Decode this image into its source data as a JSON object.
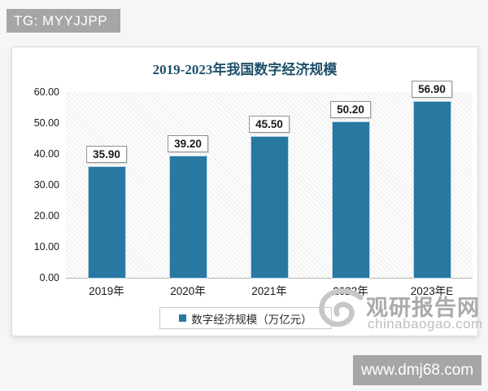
{
  "overlays": {
    "tg_banner": "TG: MYYJJPP",
    "site_banner": "www.dmj68.com"
  },
  "watermark": {
    "name": "观研报告网",
    "domain": "chinabaogao.com"
  },
  "chart_data": {
    "type": "bar",
    "title": "2019-2023年我国数字经济规模",
    "categories": [
      "2019年",
      "2020年",
      "2021年",
      "2022年",
      "2023年E"
    ],
    "values": [
      35.9,
      39.2,
      45.5,
      50.2,
      56.9
    ],
    "value_labels": [
      "35.90",
      "39.20",
      "45.50",
      "50.20",
      "56.90"
    ],
    "series_name": "数字经济规模（万亿元）",
    "xlabel": "",
    "ylabel": "",
    "ylim": [
      0,
      60
    ],
    "ytick_step": 10,
    "ytick_labels": [
      "60.00",
      "50.00",
      "40.00",
      "30.00",
      "20.00",
      "10.00",
      "0.00"
    ],
    "grid": false,
    "legend_position": "bottom",
    "bar_color": "#2878a2",
    "title_color": "#1e506b"
  }
}
